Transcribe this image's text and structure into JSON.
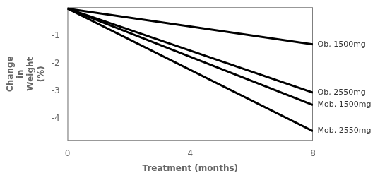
{
  "chart_data": {
    "type": "line",
    "x": [
      0,
      8
    ],
    "series": [
      {
        "name": "Ob, 1500mg",
        "values": [
          0,
          -1.3
        ]
      },
      {
        "name": "Ob, 2550mg",
        "values": [
          0,
          -3.05
        ]
      },
      {
        "name": "Mob, 1500mg",
        "values": [
          0,
          -3.5
        ]
      },
      {
        "name": "Mob, 2550mg",
        "values": [
          0,
          -4.45
        ]
      }
    ],
    "color": "#000000",
    "xlabel": "Treatment (months)",
    "ylabel": [
      "Change",
      "in",
      "Weight",
      "(%)"
    ],
    "xlim": [
      0,
      8
    ],
    "ylim": [
      -4.8,
      0.05
    ],
    "xticks": [
      0,
      4,
      8
    ],
    "yticks": [
      -4,
      -3,
      -2,
      -1
    ],
    "grid": false,
    "annotations": [
      {
        "text": "Ob, 1500mg",
        "x": 8.15,
        "y": -1.3
      },
      {
        "text": "Ob, 2550mg",
        "x": 8.15,
        "y": -3.05
      },
      {
        "text": "Mob, 1500mg",
        "x": 8.15,
        "y": -3.5
      },
      {
        "text": "Mob, 2550mg",
        "x": 8.15,
        "y": -4.45
      }
    ]
  }
}
